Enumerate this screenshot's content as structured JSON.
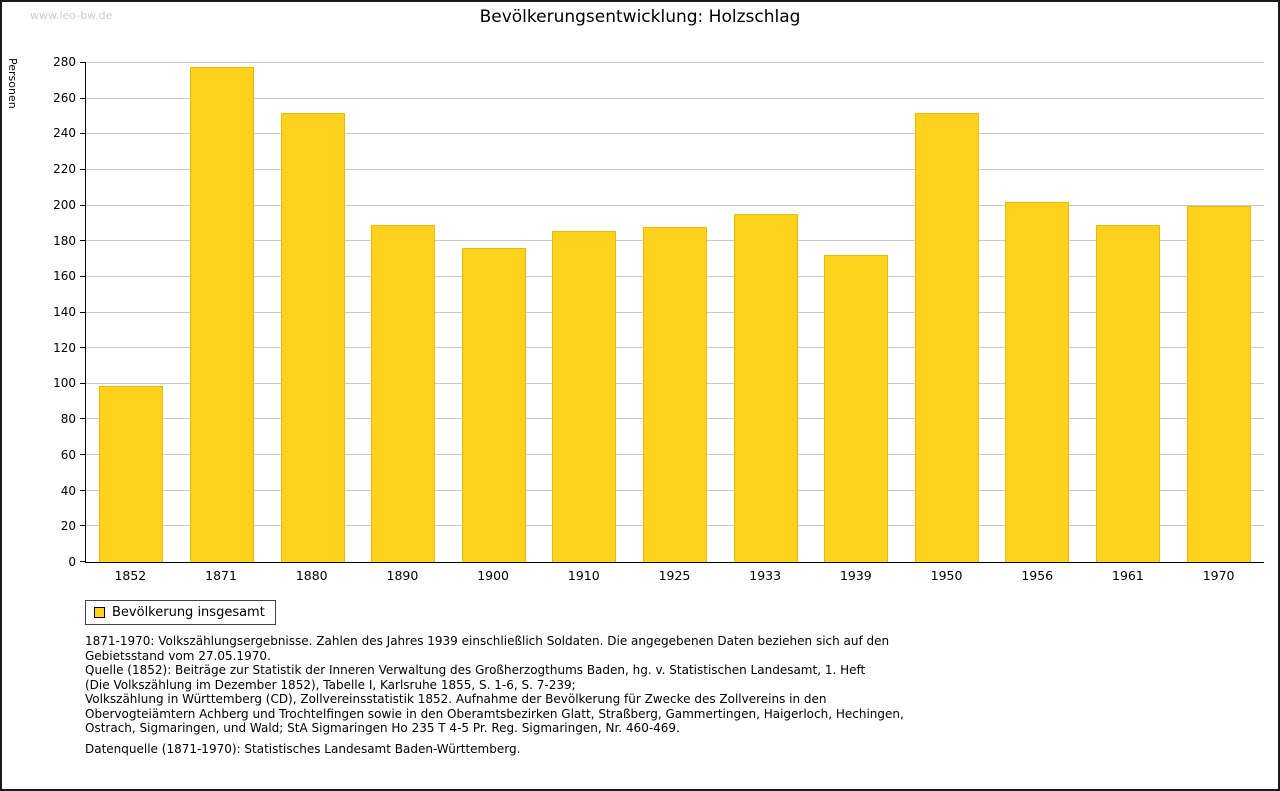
{
  "watermark": "www.leo-bw.de",
  "legend": {
    "label": "Bevölkerung insgesamt"
  },
  "colors": {
    "bar": "#FFD21E",
    "bar_border": "#E8BC00",
    "grid": "#C8C8C8",
    "axis": "#000000",
    "watermark": "#CCCCCC"
  },
  "notes": [
    "1871-1970: Volkszählungsergebnisse. Zahlen des Jahres 1939 einschließlich Soldaten. Die angegebenen Daten beziehen sich auf den",
    "Gebietsstand vom 27.05.1970.",
    "Quelle (1852): Beiträge zur Statistik der Inneren Verwaltung des Großherzogthums Baden, hg. v. Statistischen Landesamt, 1. Heft",
    "(Die Volkszählung im Dezember 1852), Tabelle I, Karlsruhe 1855, S. 1-6, S. 7-239;",
    "Volkszählung in Württemberg (CD), Zollvereinsstatistik 1852. Aufnahme der Bevölkerung für Zwecke des Zollvereins in den",
    "Obervogteiämtern Achberg und Trochtelfingen sowie in den Oberamtsbezirken Glatt, Straßberg, Gammertingen, Haigerloch, Hechingen,",
    "Ostrach, Sigmaringen, und Wald; StA Sigmaringen Ho 235 T 4-5 Pr. Reg. Sigmaringen, Nr. 460-469."
  ],
  "datasource": "Datenquelle (1871-1970): Statistisches Landesamt Baden-Württemberg.",
  "chart_data": {
    "type": "bar",
    "title": "Bevölkerungsentwicklung: Holzschlag",
    "xlabel": "",
    "ylabel": "Personen",
    "series_name": "Bevölkerung insgesamt",
    "categories": [
      "1852",
      "1871",
      "1880",
      "1890",
      "1900",
      "1910",
      "1925",
      "1933",
      "1939",
      "1950",
      "1956",
      "1961",
      "1970"
    ],
    "values": [
      99,
      278,
      252,
      189,
      176,
      186,
      188,
      195,
      172,
      252,
      202,
      189,
      200
    ],
    "ylim": [
      0,
      280
    ],
    "ytick_step": 20,
    "grid": true,
    "legend_position": "bottom-left"
  }
}
